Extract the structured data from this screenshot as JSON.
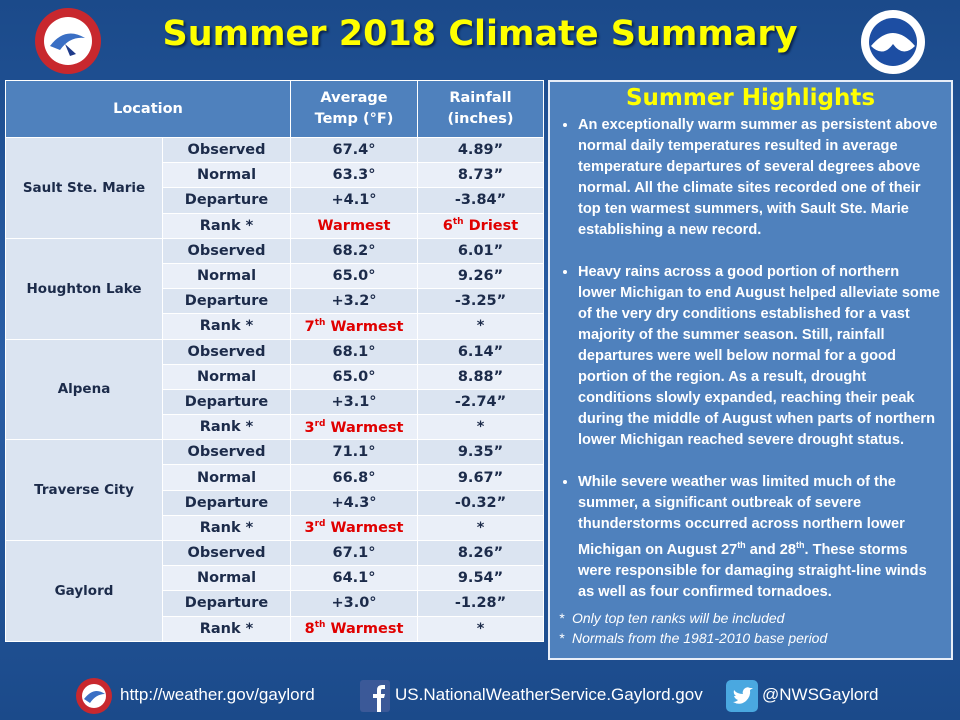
{
  "header": {
    "title": "Summer 2018 Climate Summary"
  },
  "table": {
    "headers": [
      "Location",
      "Average Temp (°F)",
      "Rainfall (inches)"
    ],
    "locations": [
      {
        "name": "Sault Ste. Marie",
        "rows": [
          {
            "label": "Observed",
            "temp": [
              "67.4°"
            ],
            "rain": [
              "4.89”"
            ]
          },
          {
            "label": "Normal",
            "temp": [
              "63.3°"
            ],
            "rain": [
              "8.73”"
            ]
          },
          {
            "label": "Departure",
            "temp": [
              "+4.1°"
            ],
            "rain": [
              "-3.84”"
            ]
          },
          {
            "label": "Rank *",
            "temp": [
              "Warmest"
            ],
            "rain": [
              "6",
              "th",
              " Driest"
            ]
          }
        ]
      },
      {
        "name": "Houghton Lake",
        "rows": [
          {
            "label": "Observed",
            "temp": [
              "68.2°"
            ],
            "rain": [
              "6.01”"
            ]
          },
          {
            "label": "Normal",
            "temp": [
              "65.0°"
            ],
            "rain": [
              "9.26”"
            ]
          },
          {
            "label": "Departure",
            "temp": [
              "+3.2°"
            ],
            "rain": [
              "-3.25”"
            ]
          },
          {
            "label": "Rank *",
            "temp": [
              "7",
              "th",
              " Warmest"
            ],
            "rain": [
              "*"
            ]
          }
        ]
      },
      {
        "name": "Alpena",
        "rows": [
          {
            "label": "Observed",
            "temp": [
              "68.1°"
            ],
            "rain": [
              "6.14”"
            ]
          },
          {
            "label": "Normal",
            "temp": [
              "65.0°"
            ],
            "rain": [
              "8.88”"
            ]
          },
          {
            "label": "Departure",
            "temp": [
              "+3.1°"
            ],
            "rain": [
              "-2.74”"
            ]
          },
          {
            "label": "Rank *",
            "temp": [
              "3",
              "rd",
              " Warmest"
            ],
            "rain": [
              "*"
            ]
          }
        ]
      },
      {
        "name": "Traverse City",
        "rows": [
          {
            "label": "Observed",
            "temp": [
              "71.1°"
            ],
            "rain": [
              "9.35”"
            ]
          },
          {
            "label": "Normal",
            "temp": [
              "66.8°"
            ],
            "rain": [
              "9.67”"
            ]
          },
          {
            "label": "Departure",
            "temp": [
              "+4.3°"
            ],
            "rain": [
              "-0.32”"
            ]
          },
          {
            "label": "Rank *",
            "temp": [
              "3",
              "rd",
              " Warmest"
            ],
            "rain": [
              "*"
            ]
          }
        ]
      },
      {
        "name": "Gaylord",
        "rows": [
          {
            "label": "Observed",
            "temp": [
              "67.1°"
            ],
            "rain": [
              "8.26”"
            ]
          },
          {
            "label": "Normal",
            "temp": [
              "64.1°"
            ],
            "rain": [
              "9.54”"
            ]
          },
          {
            "label": "Departure",
            "temp": [
              "+3.0°"
            ],
            "rain": [
              "-1.28”"
            ]
          },
          {
            "label": "Rank *",
            "temp": [
              "8",
              "th",
              " Warmest"
            ],
            "rain": [
              "*"
            ]
          }
        ]
      }
    ]
  },
  "highlights": {
    "title": "Summer Highlights",
    "bullets": [
      [
        "An exceptionally warm summer as persistent above normal daily temperatures resulted in average temperature departures of several degrees above normal.  All the climate sites recorded one of their top ten warmest summers, with Sault Ste. Marie establishing a new record."
      ],
      [
        "Heavy rains across a good portion of northern lower Michigan to end August helped alleviate some of the very dry conditions established for a vast majority of the summer season. Still, rainfall departures were well below normal for a good portion of  the region.  As a result, drought conditions slowly expanded, reaching their peak during the middle of August when parts of northern lower Michigan  reached severe drought status."
      ],
      [
        "While severe weather was limited much of the summer, a significant  outbreak of severe thunderstorms occurred across northern lower Michigan on August 27",
        "th",
        " and 28",
        "th",
        ".  These storms were responsible for damaging straight-line winds as well as four confirmed tornadoes."
      ]
    ],
    "notes": [
      "Only top ten ranks will be included",
      "Normals from the 1981-2010 base period"
    ]
  },
  "footer": {
    "web": "http://weather.gov/gaylord",
    "facebook": "US.NationalWeatherService.Gaylord.gov",
    "twitter": "@NWSGaylord"
  }
}
